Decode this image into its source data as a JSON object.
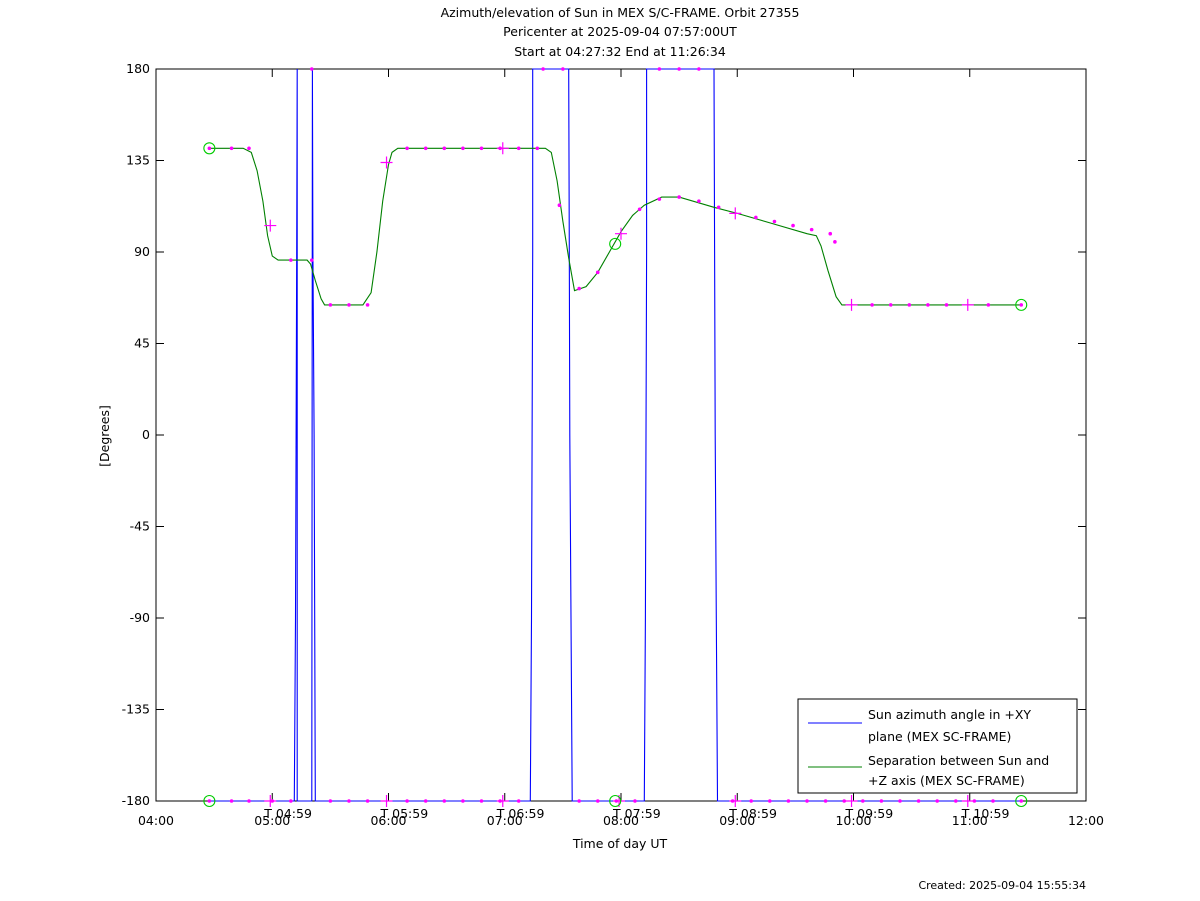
{
  "chart_data": {
    "type": "line",
    "title_lines": [
      "Azimuth/elevation of Sun in MEX S/C-FRAME.  Orbit 27355",
      "Pericenter at 2025-09-04 07:57:00UT",
      "Start at 04:27:32 End at 11:26:34"
    ],
    "xlabel": "Time of day UT",
    "ylabel": "[Degrees]",
    "footer": "Created: 2025-09-04 15:55:34",
    "xlim": [
      4,
      12
    ],
    "ylim": [
      -180,
      180
    ],
    "x_ticks": [
      {
        "v": 4,
        "label": "04:00"
      },
      {
        "v": 5,
        "label": "05:00"
      },
      {
        "v": 6,
        "label": "06:00"
      },
      {
        "v": 7,
        "label": "07:00"
      },
      {
        "v": 8,
        "label": "08:00"
      },
      {
        "v": 9,
        "label": "09:00"
      },
      {
        "v": 10,
        "label": "10:00"
      },
      {
        "v": 11,
        "label": "11:00"
      },
      {
        "v": 12,
        "label": "12:00"
      }
    ],
    "y_ticks": [
      {
        "v": 180,
        "label": "180"
      },
      {
        "v": 135,
        "label": "135"
      },
      {
        "v": 90,
        "label": "90"
      },
      {
        "v": 45,
        "label": "45"
      },
      {
        "v": 0,
        "label": "0"
      },
      {
        "v": -45,
        "label": "-45"
      },
      {
        "v": -90,
        "label": "-90"
      },
      {
        "v": -135,
        "label": "-135"
      },
      {
        "v": -180,
        "label": "-180"
      }
    ],
    "hour_marks": [
      {
        "v": 4.983,
        "label": "T 04:59"
      },
      {
        "v": 5.983,
        "label": "T 05:59"
      },
      {
        "v": 6.983,
        "label": "T 06:59"
      },
      {
        "v": 7.983,
        "label": "T 07:59"
      },
      {
        "v": 8.983,
        "label": "T 08:59"
      },
      {
        "v": 9.983,
        "label": "T 09:59"
      },
      {
        "v": 10.983,
        "label": "T 10:59"
      }
    ],
    "series": [
      {
        "name": "Sun azimuth angle in +XY plane (MEX SC-FRAME)",
        "legend_lines": [
          "Sun azimuth angle in +XY",
          "plane (MEX SC-FRAME)"
        ],
        "color": "#0000ff",
        "x": [
          4.459,
          5.19,
          5.2,
          5.205,
          5.21,
          5.215,
          5.215,
          5.34,
          5.345,
          5.35,
          5.36,
          5.37,
          7.22,
          7.23,
          7.235,
          7.24,
          7.24,
          7.55,
          7.555,
          7.56,
          7.57,
          7.58,
          8.2,
          8.21,
          8.215,
          8.22,
          8.22,
          8.8,
          8.805,
          8.81,
          8.82,
          8.83,
          11.443
        ],
        "y": [
          -180,
          -180,
          -90,
          0,
          90,
          180,
          -180,
          -180,
          180,
          90,
          0,
          -180,
          -180,
          -90,
          0,
          90,
          180,
          180,
          90,
          0,
          -90,
          -180,
          -180,
          -90,
          0,
          90,
          180,
          180,
          90,
          0,
          -90,
          -180,
          -180
        ]
      },
      {
        "name": "Separation between Sun and +Z axis (MEX SC-FRAME)",
        "legend_lines": [
          "Separation between Sun and",
          "+Z axis (MEX SC-FRAME)"
        ],
        "color": "#008000",
        "x": [
          4.459,
          4.55,
          4.65,
          4.75,
          4.82,
          4.87,
          4.92,
          4.96,
          5.0,
          5.05,
          5.15,
          5.3,
          5.33,
          5.37,
          5.42,
          5.45,
          5.5,
          5.6,
          5.78,
          5.85,
          5.9,
          5.95,
          6.0,
          6.03,
          6.08,
          6.2,
          6.5,
          7.0,
          7.2,
          7.35,
          7.4,
          7.45,
          7.5,
          7.55,
          7.6,
          7.7,
          7.8,
          7.9,
          8.0,
          8.1,
          8.2,
          8.35,
          8.5,
          8.8,
          9.0,
          9.3,
          9.6,
          9.68,
          9.72,
          9.78,
          9.85,
          9.9,
          10.0,
          10.5,
          11.0,
          11.443
        ],
        "y": [
          141,
          141,
          141,
          141,
          139,
          130,
          115,
          98,
          88,
          86,
          86,
          86,
          84,
          76,
          67,
          64,
          64,
          64,
          64,
          70,
          90,
          115,
          133,
          139,
          141,
          141,
          141,
          141,
          141,
          141,
          139,
          125,
          105,
          87,
          71,
          73,
          80,
          90,
          100,
          108,
          113,
          117,
          117,
          112,
          109,
          104,
          99,
          98,
          93,
          81,
          68,
          64,
          64,
          64,
          64,
          64
        ]
      }
    ],
    "markers": {
      "color": "#ff00ff",
      "azimuth_dots_x": [
        4.459,
        4.65,
        4.8,
        5.0,
        5.16,
        5.5,
        5.66,
        5.82,
        6.16,
        6.32,
        6.48,
        6.64,
        6.8,
        6.96,
        7.12,
        7.64,
        7.8,
        7.96,
        8.12,
        8.96,
        9.12,
        9.28,
        9.44,
        9.6,
        9.76,
        9.92,
        10.08,
        10.24,
        10.4,
        10.56,
        10.72,
        10.88,
        11.04,
        11.2,
        11.443
      ],
      "azimuth_top_dots_x": [
        5.34,
        7.33,
        7.5,
        8.33,
        8.5,
        8.67
      ],
      "separation_dots": [
        {
          "x": 4.459,
          "y": 141
        },
        {
          "x": 4.65,
          "y": 141
        },
        {
          "x": 4.8,
          "y": 141
        },
        {
          "x": 5.16,
          "y": 86
        },
        {
          "x": 5.34,
          "y": 86
        },
        {
          "x": 5.5,
          "y": 64
        },
        {
          "x": 5.66,
          "y": 64
        },
        {
          "x": 5.82,
          "y": 64
        },
        {
          "x": 6.16,
          "y": 141
        },
        {
          "x": 6.32,
          "y": 141
        },
        {
          "x": 6.48,
          "y": 141
        },
        {
          "x": 6.64,
          "y": 141
        },
        {
          "x": 6.8,
          "y": 141
        },
        {
          "x": 6.96,
          "y": 141
        },
        {
          "x": 7.12,
          "y": 141
        },
        {
          "x": 7.28,
          "y": 141
        },
        {
          "x": 7.47,
          "y": 113
        },
        {
          "x": 7.64,
          "y": 72
        },
        {
          "x": 7.8,
          "y": 80
        },
        {
          "x": 8.16,
          "y": 111
        },
        {
          "x": 8.33,
          "y": 116
        },
        {
          "x": 8.5,
          "y": 117
        },
        {
          "x": 8.67,
          "y": 115
        },
        {
          "x": 8.84,
          "y": 112
        },
        {
          "x": 9.16,
          "y": 107
        },
        {
          "x": 9.32,
          "y": 105
        },
        {
          "x": 9.48,
          "y": 103
        },
        {
          "x": 9.64,
          "y": 101
        },
        {
          "x": 9.8,
          "y": 99
        },
        {
          "x": 9.84,
          "y": 95
        },
        {
          "x": 10.16,
          "y": 64
        },
        {
          "x": 10.32,
          "y": 64
        },
        {
          "x": 10.48,
          "y": 64
        },
        {
          "x": 10.64,
          "y": 64
        },
        {
          "x": 10.8,
          "y": 64
        },
        {
          "x": 11.16,
          "y": 64
        },
        {
          "x": 11.443,
          "y": 64
        }
      ],
      "crosses": [
        {
          "x": 4.983,
          "y": -180
        },
        {
          "x": 5.983,
          "y": -180
        },
        {
          "x": 6.983,
          "y": -180
        },
        {
          "x": 7.983,
          "y": -180
        },
        {
          "x": 8.983,
          "y": -180
        },
        {
          "x": 9.983,
          "y": -180
        },
        {
          "x": 10.983,
          "y": -180
        },
        {
          "x": 4.983,
          "y": 103
        },
        {
          "x": 5.983,
          "y": 134
        },
        {
          "x": 6.983,
          "y": 141
        },
        {
          "x": 8.0,
          "y": 99
        },
        {
          "x": 8.983,
          "y": 109
        },
        {
          "x": 9.983,
          "y": 64
        },
        {
          "x": 10.983,
          "y": 64
        }
      ],
      "circles": [
        {
          "x": 4.459,
          "y": 141
        },
        {
          "x": 4.459,
          "y": -180
        },
        {
          "x": 7.95,
          "y": 94
        },
        {
          "x": 7.95,
          "y": -180
        },
        {
          "x": 11.443,
          "y": 64
        },
        {
          "x": 11.443,
          "y": -180
        }
      ]
    },
    "grid": false,
    "legend_position": "bottom-right"
  }
}
